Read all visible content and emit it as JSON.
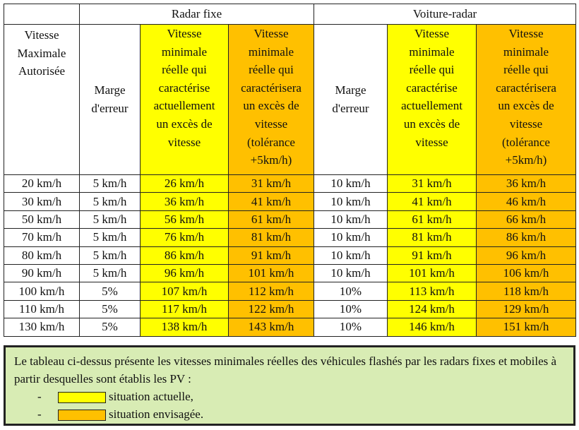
{
  "header": {
    "speed_limit": [
      "Vitesse",
      "Maximale",
      "Autorisée"
    ],
    "groups": [
      {
        "label": "Radar fixe"
      },
      {
        "label": "Voiture-radar"
      }
    ],
    "margin_label": [
      "Marge",
      "d'erreur"
    ],
    "current_label": [
      "Vitesse",
      "minimale",
      "réelle qui",
      "caractérise",
      "actuellement",
      "un excès de",
      "vitesse"
    ],
    "proposed_label": [
      "Vitesse",
      "minimale",
      "réelle qui",
      "caractérisera",
      "un excès de",
      "vitesse",
      "(tolérance",
      "+5km/h)"
    ]
  },
  "rows": [
    {
      "limit": "20 km/h",
      "fixed_margin": "5 km/h",
      "fixed_current": "26 km/h",
      "fixed_proposed": "31 km/h",
      "mobile_margin": "10 km/h",
      "mobile_current": "31 km/h",
      "mobile_proposed": "36 km/h"
    },
    {
      "limit": "30 km/h",
      "fixed_margin": "5 km/h",
      "fixed_current": "36 km/h",
      "fixed_proposed": "41 km/h",
      "mobile_margin": "10 km/h",
      "mobile_current": "41 km/h",
      "mobile_proposed": "46 km/h"
    },
    {
      "limit": "50 km/h",
      "fixed_margin": "5 km/h",
      "fixed_current": "56 km/h",
      "fixed_proposed": "61 km/h",
      "mobile_margin": "10 km/h",
      "mobile_current": "61 km/h",
      "mobile_proposed": "66 km/h"
    },
    {
      "limit": "70 km/h",
      "fixed_margin": "5 km/h",
      "fixed_current": "76 km/h",
      "fixed_proposed": "81 km/h",
      "mobile_margin": "10 km/h",
      "mobile_current": "81 km/h",
      "mobile_proposed": "86 km/h"
    },
    {
      "limit": "80 km/h",
      "fixed_margin": "5 km/h",
      "fixed_current": "86 km/h",
      "fixed_proposed": "91 km/h",
      "mobile_margin": "10 km/h",
      "mobile_current": "91 km/h",
      "mobile_proposed": "96 km/h"
    },
    {
      "limit": "90 km/h",
      "fixed_margin": "5 km/h",
      "fixed_current": "96 km/h",
      "fixed_proposed": "101 km/h",
      "mobile_margin": "10 km/h",
      "mobile_current": "101 km/h",
      "mobile_proposed": "106 km/h"
    },
    {
      "limit": "100 km/h",
      "fixed_margin": "5%",
      "fixed_current": "107 km/h",
      "fixed_proposed": "112 km/h",
      "mobile_margin": "10%",
      "mobile_current": "113 km/h",
      "mobile_proposed": "118 km/h"
    },
    {
      "limit": "110 km/h",
      "fixed_margin": "5%",
      "fixed_current": "117 km/h",
      "fixed_proposed": "122 km/h",
      "mobile_margin": "10%",
      "mobile_current": "124 km/h",
      "mobile_proposed": "129 km/h"
    },
    {
      "limit": "130 km/h",
      "fixed_margin": "5%",
      "fixed_current": "138 km/h",
      "fixed_proposed": "143 km/h",
      "mobile_margin": "10%",
      "mobile_current": "146 km/h",
      "mobile_proposed": "151 km/h"
    }
  ],
  "note": {
    "text": "Le tableau ci-dessus présente les vitesses minimales réelles des véhicules flashés par les radars fixes et mobiles à partir desquelles sont établis les PV :",
    "legend": [
      {
        "dash": "-",
        "label": "situation actuelle,",
        "color": "#ffff00"
      },
      {
        "dash": "-",
        "label": "situation envisagée.",
        "color": "#ffc000"
      }
    ]
  },
  "colors": {
    "current": "#ffff00",
    "proposed": "#ffc000",
    "note_background": "#d8ecb4"
  }
}
